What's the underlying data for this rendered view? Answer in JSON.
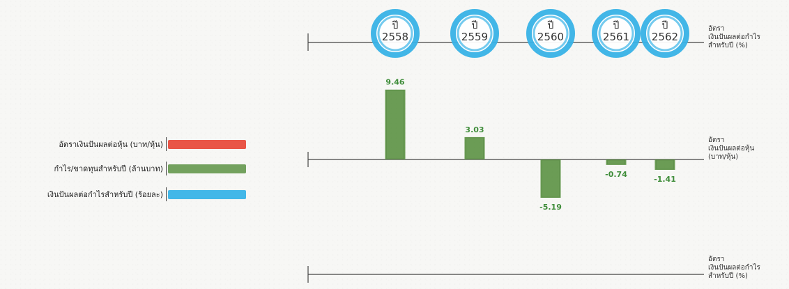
{
  "header": {
    "title_fragment": ""
  },
  "chart_data": {
    "type": "bar",
    "categories": [
      "ปี 2558",
      "ปี 2559",
      "ปี 2560",
      "ปี 2561",
      "ปี 2562"
    ],
    "series": [
      {
        "name": "อัตราเงินปันผลต่อหุ้น (บาท/หุ้น)",
        "values": [
          9.46,
          3.03,
          -5.19,
          -0.74,
          -1.41
        ]
      }
    ],
    "axes": {
      "top_label_lines": [
        "อัตรา",
        "เงินปันผลต่อกำไร",
        "สำหรับปี (%)"
      ],
      "middle_label_lines": [
        "อัตรา",
        "เงินปันผลต่อหุ้น",
        "(บาท/หุ้น)"
      ],
      "bottom_label_lines": [
        "อัตรา",
        "เงินปันผลต่อกำไร",
        "สำหรับปี (%)"
      ]
    },
    "ylim": [
      -5.5,
      10
    ],
    "grid": false,
    "legend_position": "left"
  },
  "years": [
    {
      "prefix": "ปี",
      "year": "2558"
    },
    {
      "prefix": "ปี",
      "year": "2559"
    },
    {
      "prefix": "ปี",
      "year": "2560"
    },
    {
      "prefix": "ปี",
      "year": "2561"
    },
    {
      "prefix": "ปี",
      "year": "2562"
    }
  ],
  "value_labels": [
    "9.46",
    "3.03",
    "-5.19",
    "-0.74",
    "-1.41"
  ],
  "legend": [
    {
      "label": "อัตราเงินปันผลต่อหุ้น (บาท/หุ้น)",
      "color": "#e84c3d"
    },
    {
      "label": "กำไร/ขาดทุนสำหรับปี (ล้านบาท)",
      "color": "#6b9c55"
    },
    {
      "label": "เงินปันผลต่อกำไรสำหรับปี (ร้อยละ)",
      "color": "#39b3e7"
    }
  ],
  "colors": {
    "bar": "#5e9446",
    "bar_dark": "#4d7f38",
    "label": "#3f8d3a",
    "circle": "#39b3e7",
    "axis": "#333333"
  }
}
